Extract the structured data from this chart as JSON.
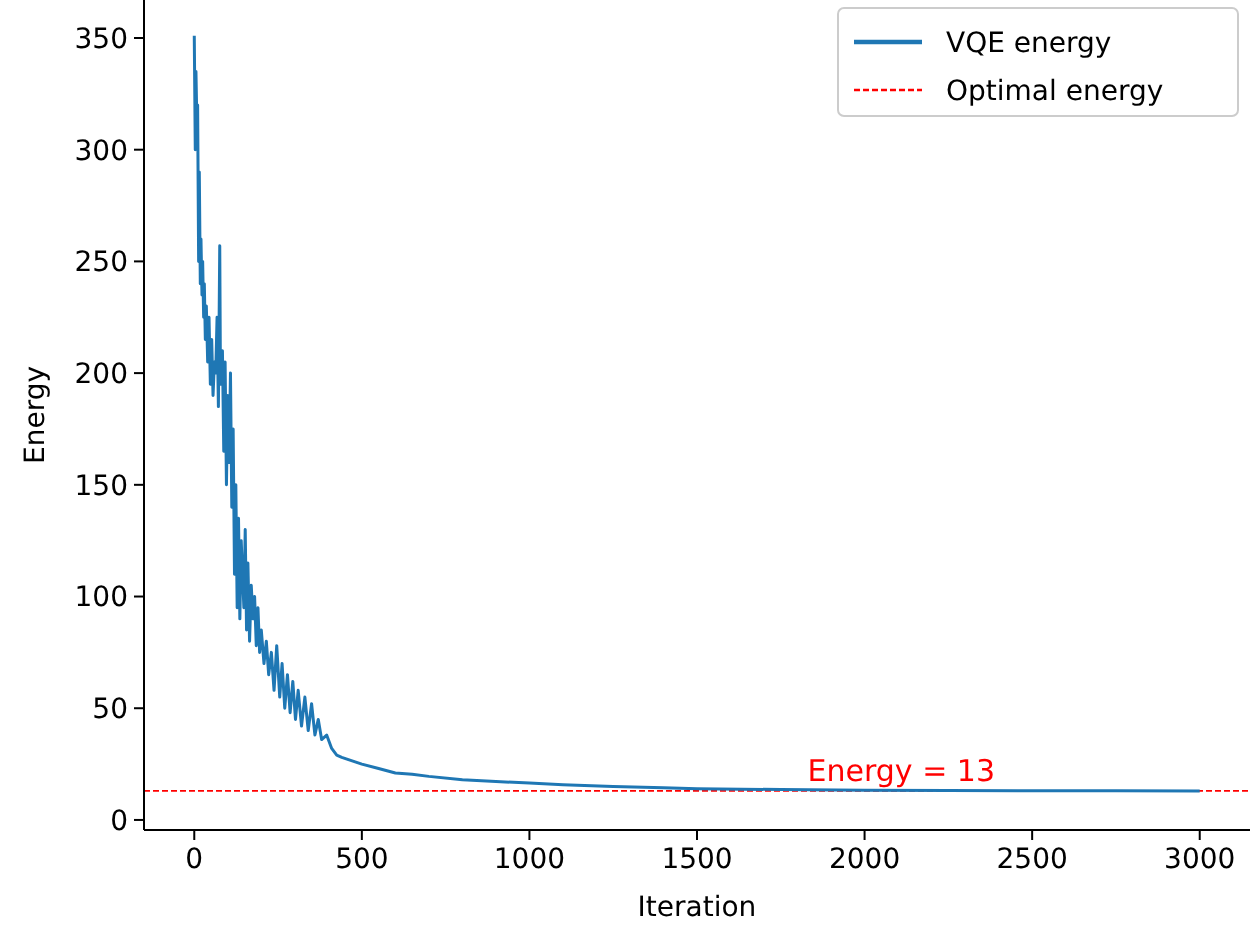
{
  "chart_data": {
    "type": "line",
    "xlabel": "Iteration",
    "ylabel": "Energy",
    "xlim": [
      -150,
      3150
    ],
    "ylim": [
      -4.5,
      367
    ],
    "xticks": [
      0,
      500,
      1000,
      1500,
      2000,
      2500,
      3000
    ],
    "yticks": [
      0,
      50,
      100,
      150,
      200,
      250,
      300,
      350
    ],
    "grid": false,
    "legend": "top right",
    "series": [
      {
        "name": "VQE energy",
        "color": "#1f77b4",
        "x": [
          0,
          3,
          5,
          8,
          10,
          13,
          15,
          18,
          20,
          23,
          25,
          28,
          30,
          33,
          36,
          40,
          44,
          48,
          52,
          56,
          60,
          64,
          68,
          72,
          76,
          78,
          80,
          84,
          88,
          92,
          96,
          100,
          104,
          108,
          112,
          116,
          120,
          124,
          128,
          132,
          136,
          140,
          144,
          148,
          152,
          156,
          160,
          165,
          170,
          175,
          180,
          185,
          190,
          195,
          200,
          208,
          215,
          222,
          230,
          238,
          246,
          255,
          262,
          270,
          278,
          286,
          294,
          302,
          310,
          320,
          330,
          340,
          350,
          360,
          370,
          380,
          395,
          410,
          425,
          440,
          460,
          480,
          500,
          550,
          600,
          650,
          700,
          800,
          900,
          1000,
          1100,
          1250,
          1400,
          1500,
          1750,
          2000,
          2250,
          2500,
          2750,
          3000
        ],
        "values": [
          351,
          300,
          335,
          310,
          320,
          250,
          290,
          240,
          260,
          235,
          250,
          225,
          240,
          215,
          230,
          205,
          225,
          195,
          215,
          190,
          205,
          200,
          225,
          185,
          257,
          200,
          195,
          210,
          165,
          205,
          150,
          190,
          160,
          200,
          140,
          175,
          110,
          150,
          95,
          135,
          90,
          125,
          110,
          95,
          130,
          85,
          115,
          80,
          105,
          90,
          100,
          78,
          95,
          75,
          85,
          70,
          80,
          65,
          75,
          58,
          78,
          55,
          70,
          50,
          65,
          48,
          62,
          45,
          58,
          42,
          55,
          40,
          52,
          38,
          45,
          36,
          38,
          32,
          29,
          28,
          27,
          26,
          25,
          23,
          21,
          20.5,
          19.5,
          18,
          17.2,
          16.5,
          15.8,
          15,
          14.4,
          14,
          13.6,
          13.3,
          13.2,
          13.1,
          13.05,
          13
        ]
      }
    ],
    "ref_lines": [
      {
        "axis": "y",
        "value": 13,
        "label": "Optimal energy",
        "color": "#ff0000",
        "line_style": "dashed"
      }
    ],
    "annotations": [
      {
        "text": "Energy = 13",
        "x": 1830,
        "y": 13
      }
    ]
  }
}
